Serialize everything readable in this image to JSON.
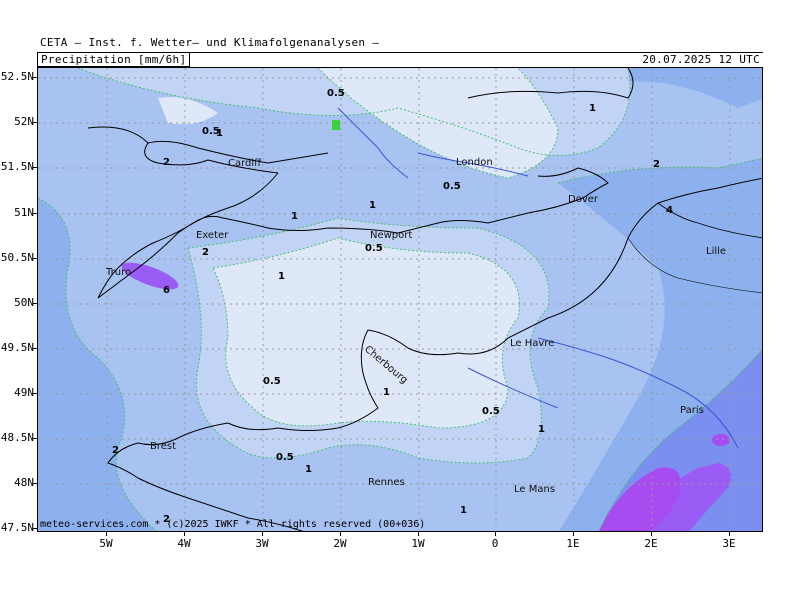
{
  "header": {
    "title": "CETA – Inst. f. Wetter– und Klimafolgenanalysen –",
    "parameter": "Precipitation [mm/6h]",
    "valid_time": "20.07.2025 12 UTC"
  },
  "map": {
    "latitude_labels": [
      "52.5N",
      "52N",
      "51.5N",
      "51N",
      "50.5N",
      "50N",
      "49.5N",
      "49N",
      "48.5N",
      "48N",
      "47.5N"
    ],
    "longitude_labels": [
      "5W",
      "4W",
      "3W",
      "2W",
      "1W",
      "0",
      "1E",
      "2E",
      "3E"
    ],
    "cities": [
      "Cardiff",
      "London",
      "Dover",
      "Exeter",
      "Newport",
      "Truro",
      "Lille",
      "Cherbourg",
      "Le Havre",
      "Paris",
      "Brest",
      "Rennes",
      "Le Mans"
    ],
    "contour_values": [
      "0.5",
      "1",
      "1",
      "2",
      "0.5",
      "1",
      "0.5",
      "2",
      "4",
      "2",
      "0.5",
      "1",
      "6",
      "1",
      "0.5",
      "1",
      "0.5",
      "1",
      "2",
      "0.5",
      "1",
      "2",
      "1"
    ],
    "contour_levels_mm": [
      0.5,
      1,
      2,
      4,
      6
    ],
    "colors": {
      "lt_05": "#dfe8f9",
      "lvl_05": "#c2d4f5",
      "lvl_1": "#a8c2f2",
      "lvl_2": "#8db0ee",
      "lvl_4": "#7a8ff0",
      "lvl_6": "#9a5cf5",
      "lvl_8": "#a64cf0",
      "coast": "#000000",
      "rivers": "#3a55d9",
      "contour_line": "#43c26b",
      "grid": "#9a9a9a"
    }
  },
  "footer": {
    "copyright": "meteo-services.com * (c)2025 IWKF * All rights reserved (00+036)"
  }
}
